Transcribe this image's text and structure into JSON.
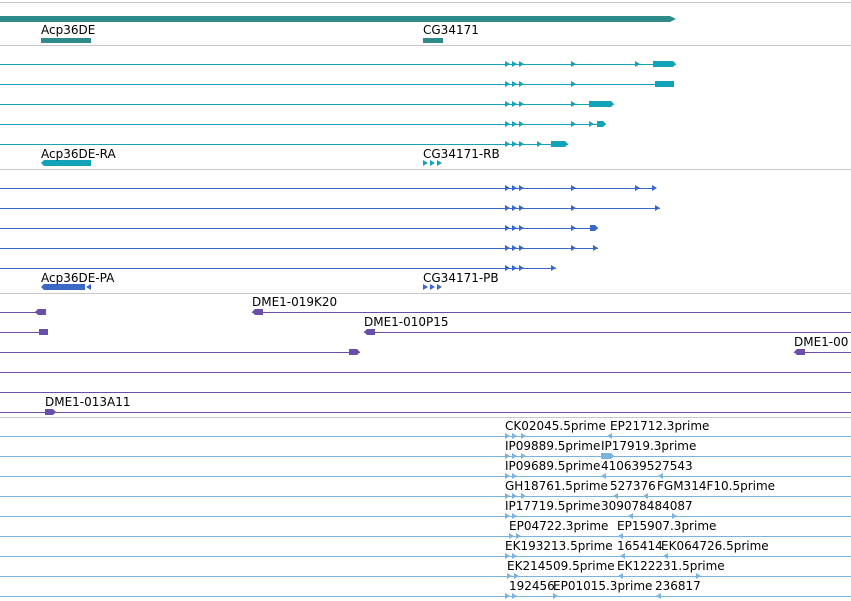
{
  "colors": {
    "gene": "#2f8a8a",
    "mrna": "#13a3b8",
    "protein": "#3a68c9",
    "clone": "#6a4ea8",
    "est": "#7ab4dc",
    "divider": "#c8c8c8"
  },
  "gene_track": {
    "labels": [
      "Acp36DE",
      "CG34171"
    ]
  },
  "mrna_track": {
    "labels": [
      "Acp36DE-RA",
      "CG34171-RB"
    ]
  },
  "protein_track": {
    "labels": [
      "Acp36DE-PA",
      "CG34171-PB"
    ]
  },
  "clone_track": {
    "labels": [
      "DME1-019K20",
      "DME1-010P15",
      "DME1-00",
      "DME1-013A11"
    ]
  },
  "est_track": {
    "labels": [
      "CK02045.5prime",
      "EP21712.3prime",
      "IP09889.5prime",
      "IP17919.3prime",
      "IP09689.5prime",
      "410639527543",
      "GH18761.5prime",
      "527376",
      "FGM314F10.5prime",
      "IP17719.5prime",
      "309078484087",
      "EP04722.3prime",
      "EP15907.3prime",
      "EK193213.5prime",
      "165414",
      "EK064726.5prime",
      "EK214509.5prime",
      "EK122231.5prime",
      "192456",
      "EP01015.3prime",
      "236817"
    ]
  }
}
